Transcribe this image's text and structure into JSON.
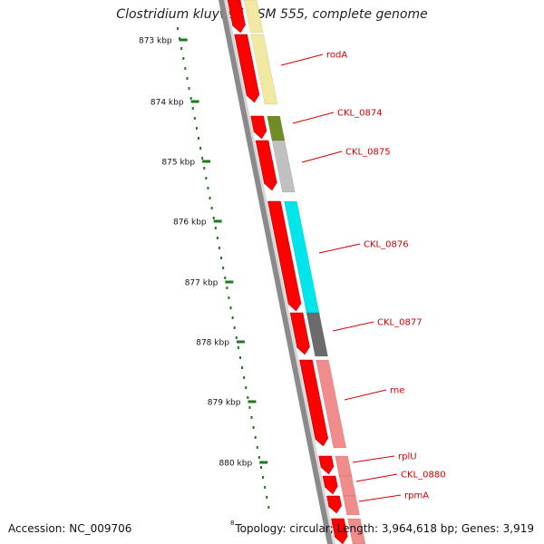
{
  "title": "Clostridium kluyveri DSM 555, complete genome",
  "accession": "Accession: NC_009706",
  "topology": "Topology: circular; Length: 3,964,618 bp; Genes: 3,919",
  "footnote_mark": "8",
  "kbp_labels": [
    "873 kbp",
    "874 kbp",
    "875 kbp",
    "876 kbp",
    "877 kbp",
    "878 kbp",
    "879 kbp",
    "880 kbp"
  ],
  "genes": [
    {
      "name": "rodA",
      "color": "#f1e8a2"
    },
    {
      "name": "CKL_0874",
      "color": "#6f8c27"
    },
    {
      "name": "CKL_0875",
      "color": "#c0c0c0"
    },
    {
      "name": "CKL_0876",
      "color": "#00e5ea"
    },
    {
      "name": "CKL_0877",
      "color": "#6b6b6b"
    },
    {
      "name": "rne",
      "color": "#f08c8c"
    },
    {
      "name": "rplU",
      "color": "#f08c8c"
    },
    {
      "name": "CKL_0880",
      "color": "#f08c8c"
    },
    {
      "name": "rpmA",
      "color": "#f08c8c"
    }
  ],
  "colors": {
    "cds": "#ff0000",
    "label": "#d40000",
    "tick": "#1f7a1f",
    "backbone": "#8a8a8a"
  }
}
